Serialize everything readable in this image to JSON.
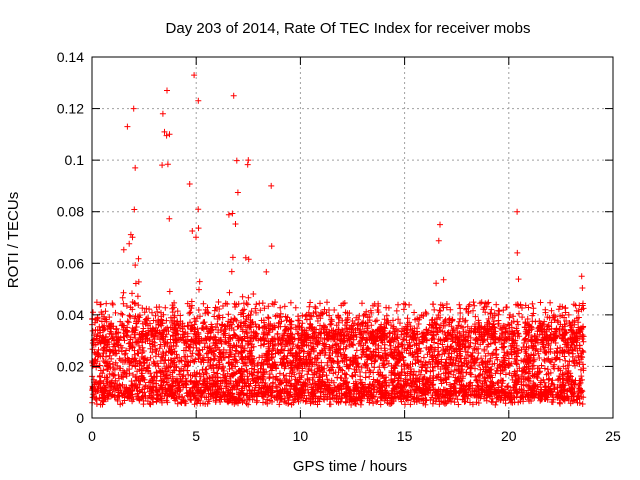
{
  "chart_data": {
    "type": "scatter",
    "title": "Day 203 of 2014, Rate Of TEC Index for receiver mobs",
    "xlabel": "GPS time / hours",
    "ylabel": "ROTI / TECUs",
    "xlim": [
      0,
      25
    ],
    "ylim": [
      0,
      0.14
    ],
    "xticks": [
      0,
      5,
      10,
      15,
      20,
      25
    ],
    "xtick_labels": [
      "0",
      "5",
      "10",
      "15",
      "20",
      "25"
    ],
    "yticks": [
      0,
      0.02,
      0.04,
      0.06,
      0.08,
      0.1,
      0.12,
      0.14
    ],
    "ytick_labels": [
      "0",
      "0.02",
      "0.04",
      "0.06",
      "0.08",
      "0.1",
      "0.12",
      "0.14"
    ],
    "grid": true,
    "marker": "+",
    "color": "#ff0000",
    "series": [
      {
        "name": "ROTI",
        "x_range": [
          0,
          23.6
        ],
        "baseline_range": [
          0.005,
          0.035
        ],
        "notable_peaks": [
          {
            "x": 1.7,
            "y": 0.113
          },
          {
            "x": 2.0,
            "y": 0.12
          },
          {
            "x": 3.6,
            "y": 0.127
          },
          {
            "x": 3.4,
            "y": 0.118
          },
          {
            "x": 4.9,
            "y": 0.133
          },
          {
            "x": 5.1,
            "y": 0.123
          },
          {
            "x": 6.8,
            "y": 0.125
          },
          {
            "x": 7.5,
            "y": 0.1
          },
          {
            "x": 8.6,
            "y": 0.09
          },
          {
            "x": 16.7,
            "y": 0.075
          },
          {
            "x": 20.4,
            "y": 0.08
          },
          {
            "x": 23.5,
            "y": 0.055
          }
        ]
      }
    ]
  }
}
